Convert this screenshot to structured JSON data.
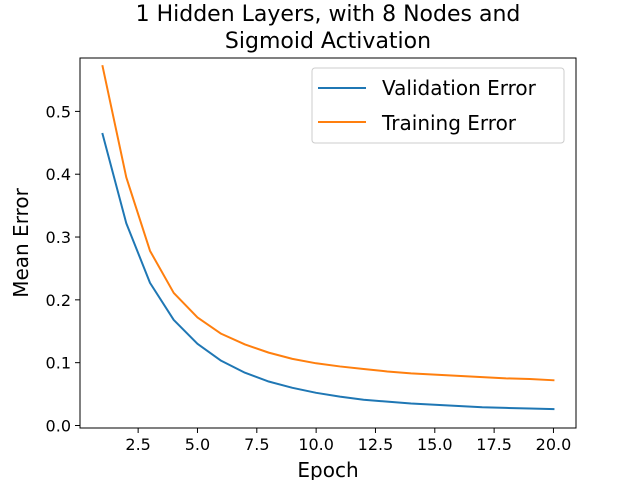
{
  "chart_data": {
    "type": "line",
    "title_lines": [
      "1 Hidden Layers, with 8 Nodes and",
      "Sigmoid Activation"
    ],
    "xlabel": "Epoch",
    "ylabel": "Mean Error",
    "xlim": [
      0.05,
      20.95
    ],
    "ylim": [
      -0.004,
      0.585
    ],
    "xticks": [
      2.5,
      5.0,
      7.5,
      10.0,
      12.5,
      15.0,
      17.5,
      20.0
    ],
    "xtick_labels": [
      "2.5",
      "5.0",
      "7.5",
      "10.0",
      "12.5",
      "15.0",
      "17.5",
      "20.0"
    ],
    "yticks": [
      0.0,
      0.1,
      0.2,
      0.3,
      0.4,
      0.5
    ],
    "ytick_labels": [
      "0.0",
      "0.1",
      "0.2",
      "0.3",
      "0.4",
      "0.5"
    ],
    "grid": false,
    "legend_position": "top-right",
    "x": [
      1,
      2,
      3,
      4,
      5,
      6,
      7,
      8,
      9,
      10,
      11,
      12,
      13,
      14,
      15,
      16,
      17,
      18,
      19,
      20
    ],
    "series": [
      {
        "name": "Validation Error",
        "color": "#1f77b4",
        "values": [
          0.464,
          0.322,
          0.227,
          0.168,
          0.13,
          0.103,
          0.084,
          0.07,
          0.06,
          0.052,
          0.046,
          0.041,
          0.038,
          0.035,
          0.033,
          0.031,
          0.029,
          0.028,
          0.027,
          0.026
        ]
      },
      {
        "name": "Training Error",
        "color": "#ff7f0e",
        "values": [
          0.572,
          0.395,
          0.278,
          0.211,
          0.172,
          0.146,
          0.129,
          0.116,
          0.106,
          0.099,
          0.094,
          0.09,
          0.086,
          0.083,
          0.081,
          0.079,
          0.077,
          0.075,
          0.074,
          0.072
        ]
      }
    ]
  }
}
